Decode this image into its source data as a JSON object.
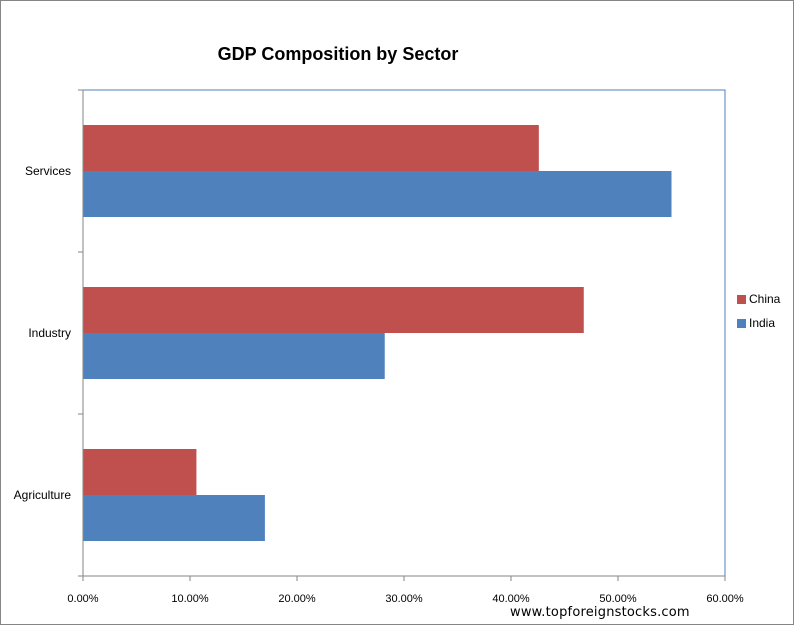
{
  "chart_data": {
    "type": "bar",
    "orientation": "horizontal",
    "title": "GDP Composition  by Sector",
    "categories": [
      "Services",
      "Industry",
      "Agriculture"
    ],
    "series": [
      {
        "name": "China",
        "color": "#C0504D",
        "values": [
          42.6,
          46.8,
          10.6
        ]
      },
      {
        "name": "India",
        "color": "#4F81BD",
        "values": [
          55.0,
          28.2,
          17.0
        ]
      }
    ],
    "xlim": [
      0,
      60
    ],
    "xticks": [
      "0.00%",
      "10.00%",
      "20.00%",
      "30.00%",
      "40.00%",
      "50.00%",
      "60.00%"
    ],
    "legend": [
      "China",
      "India"
    ],
    "legend_position": "right",
    "grid": false
  },
  "watermark": "www.topforeignstocks.com"
}
